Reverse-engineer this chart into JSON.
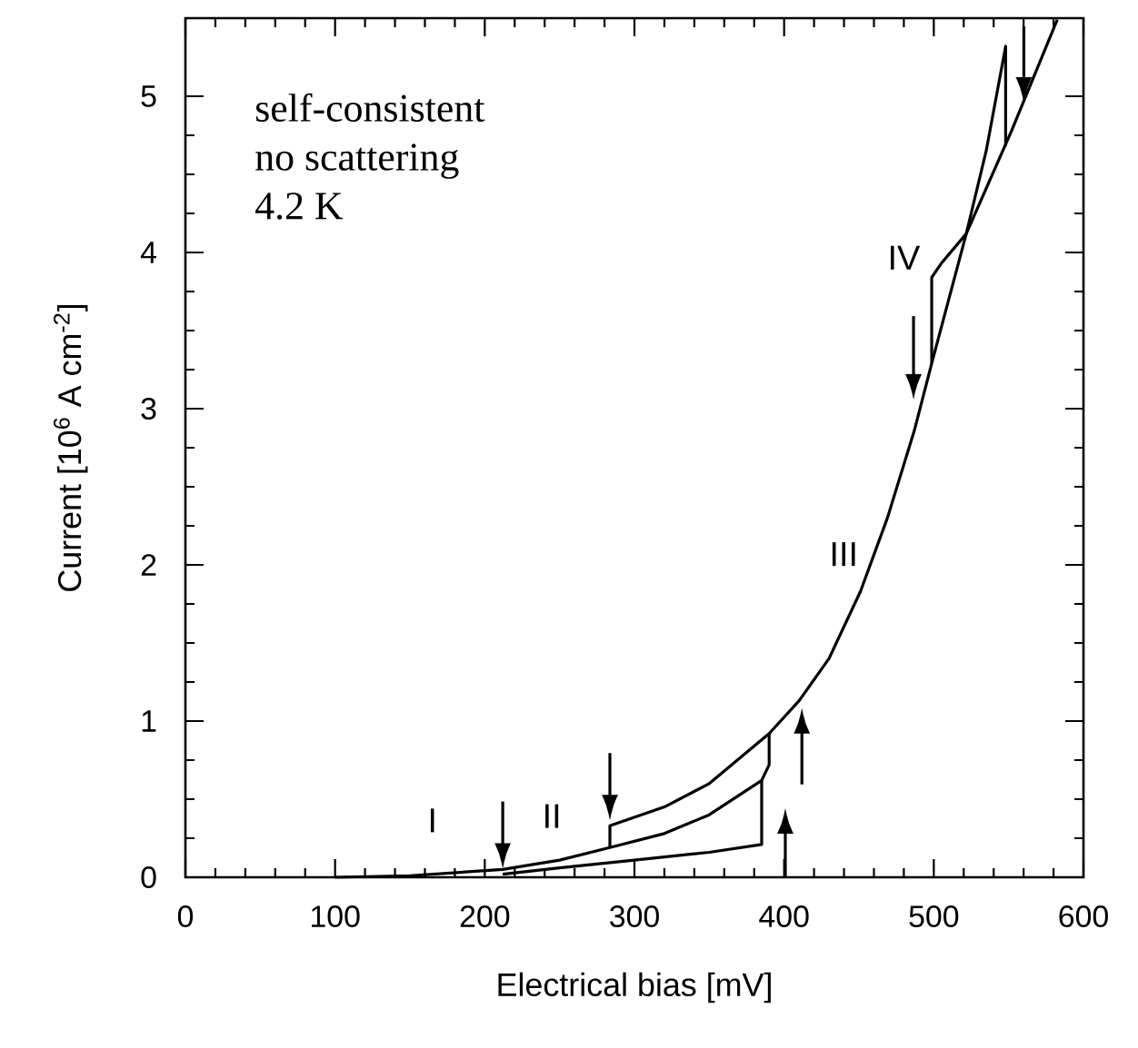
{
  "chart_data": {
    "type": "line",
    "xlabel": "Electrical bias  [mV]",
    "ylabel": "Current  [10$^{6}$ A cm$^{-2}$]",
    "xlim": [
      0,
      600
    ],
    "ylim": [
      0,
      5.5
    ],
    "xticks": [
      0,
      100,
      200,
      300,
      400,
      500,
      600
    ],
    "yticks": [
      0,
      1,
      2,
      3,
      4,
      5
    ],
    "series": [
      {
        "color": "#000000",
        "x": [
          212,
          250,
          300,
          350,
          385,
          385
        ],
        "values": [
          0.02,
          0.06,
          0.11,
          0.16,
          0.21,
          0.62
        ]
      },
      {
        "color": "#000000",
        "x": [
          100,
          150,
          212,
          250,
          283.6,
          320,
          350,
          385,
          390,
          390
        ],
        "values": [
          0,
          0.01,
          0.05,
          0.11,
          0.19,
          0.28,
          0.4,
          0.62,
          0.72,
          0.92
        ]
      },
      {
        "color": "#000000",
        "x": [
          283.6,
          283.6,
          320,
          350,
          390,
          410,
          430,
          451,
          469,
          487,
          498.6,
          521.7,
          552,
          582.5
        ],
        "values": [
          0.19,
          0.33,
          0.45,
          0.6,
          0.92,
          1.13,
          1.4,
          1.83,
          2.3,
          2.86,
          3.29,
          4.12,
          4.78,
          5.49
        ]
      },
      {
        "color": "#000000",
        "x": [
          498.6,
          498.6,
          505,
          521.7,
          535,
          548,
          548
        ],
        "values": [
          3.29,
          3.84,
          3.93,
          4.12,
          4.65,
          5.32,
          4.68
        ]
      }
    ],
    "annotations": [
      "self-consistent",
      "no scattering",
      "4.2 K",
      "I",
      "II",
      "III",
      "IV"
    ]
  }
}
